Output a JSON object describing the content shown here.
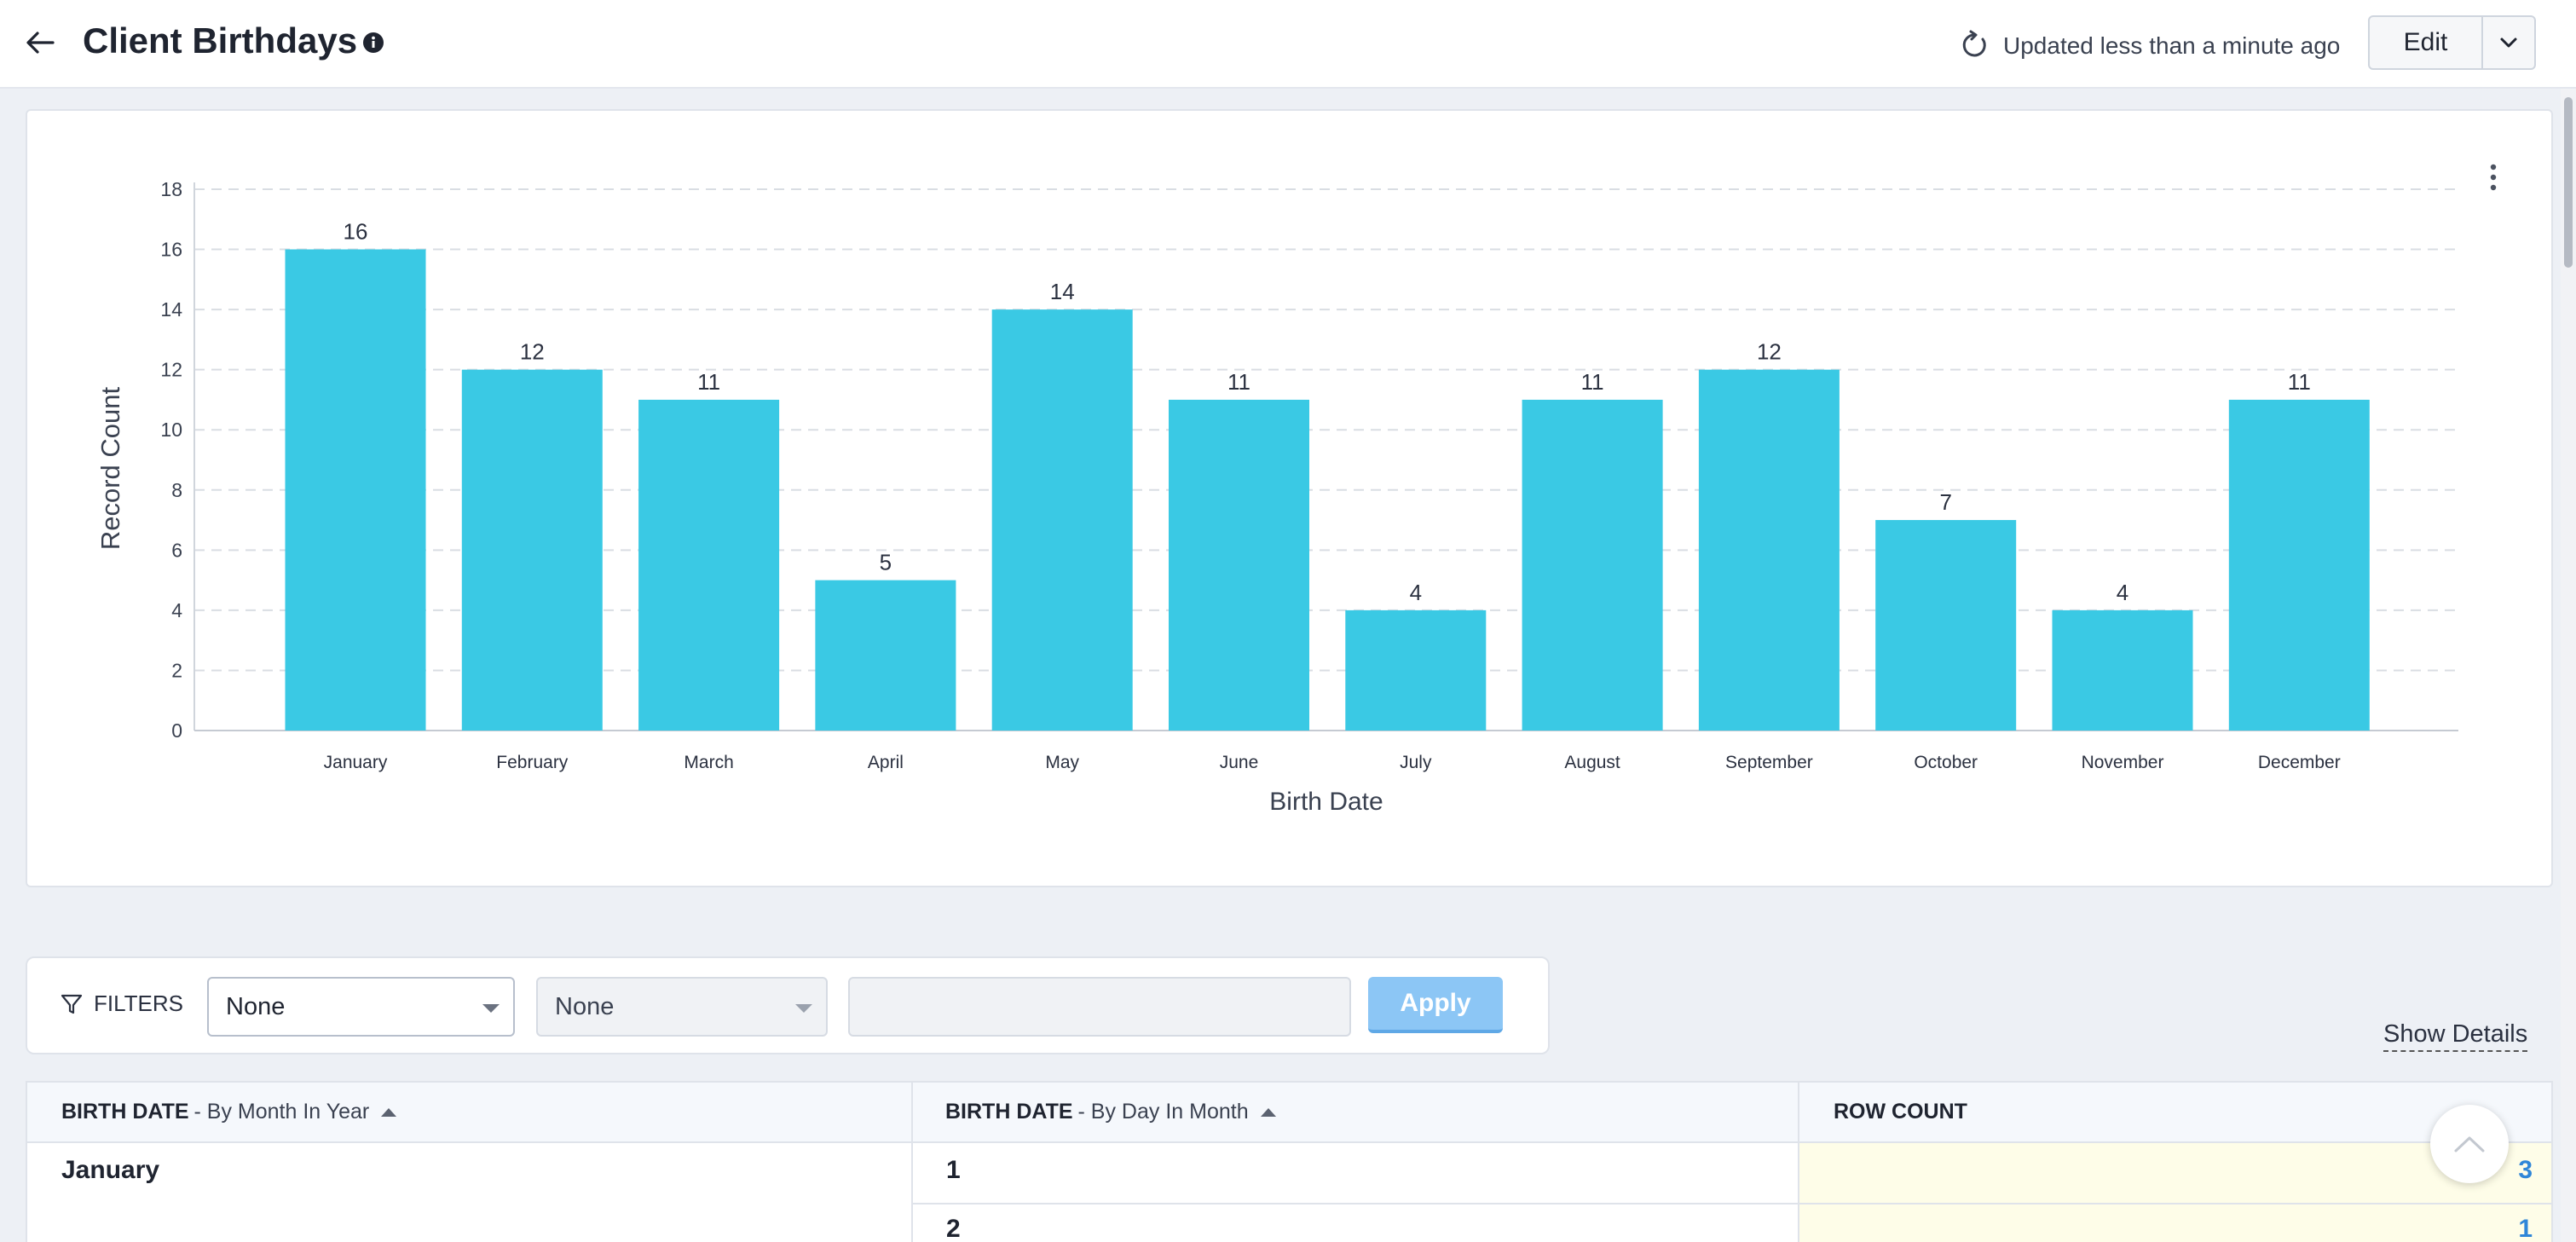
{
  "header": {
    "title": "Client Birthdays",
    "updated_text": "Updated less than a minute ago",
    "edit_label": "Edit"
  },
  "chart_data": {
    "type": "bar",
    "categories": [
      "January",
      "February",
      "March",
      "April",
      "May",
      "June",
      "July",
      "August",
      "September",
      "October",
      "November",
      "December"
    ],
    "values": [
      16,
      12,
      11,
      5,
      14,
      11,
      4,
      11,
      12,
      7,
      4,
      11
    ],
    "xlabel": "Birth Date",
    "ylabel": "Record Count",
    "ylim": [
      0,
      18
    ],
    "yticks": [
      0,
      2,
      4,
      6,
      8,
      10,
      12,
      14,
      16,
      18
    ],
    "grid": true,
    "bar_color": "#3ac9e4"
  },
  "filters": {
    "label": "FILTERS",
    "select1": "None",
    "select2": "None",
    "apply_label": "Apply",
    "show_details": "Show Details"
  },
  "table": {
    "col1_title": "BIRTH DATE",
    "col1_sub": "- By Month In Year",
    "col2_title": "BIRTH DATE",
    "col2_sub": "- By Day In Month",
    "col3_title": "ROW COUNT",
    "rows": [
      {
        "month": "January",
        "day": "1",
        "count": "3"
      },
      {
        "month": "",
        "day": "2",
        "count": "1"
      }
    ]
  }
}
